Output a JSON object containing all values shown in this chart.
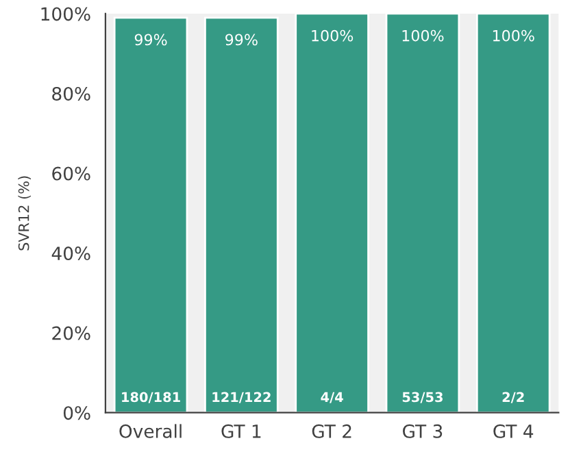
{
  "chart_data": {
    "type": "bar",
    "ylabel": "SVR12 (%)",
    "categories": [
      "Overall",
      "GT 1",
      "GT 2",
      "GT 3",
      "GT 4"
    ],
    "values": [
      99,
      99,
      100,
      100,
      100
    ],
    "color": "#359a85",
    "value_labels": [
      "99%",
      "99%",
      "100%",
      "100%",
      "100%"
    ],
    "annotations": [
      {
        "text": "180/181",
        "x": "Overall",
        "y": 0
      },
      {
        "text": "121/122",
        "x": "GT 1",
        "y": 0
      },
      {
        "text": "4/4",
        "x": "GT 2",
        "y": 0
      },
      {
        "text": "53/53",
        "x": "GT 3",
        "y": 0
      },
      {
        "text": "2/2",
        "x": "GT 4",
        "y": 0
      }
    ],
    "ylim": [
      0,
      100
    ],
    "yticks": [
      {
        "value": 0,
        "label": "0%"
      },
      {
        "value": 20,
        "label": "20%"
      },
      {
        "value": 40,
        "label": "40%"
      },
      {
        "value": 60,
        "label": "60%"
      },
      {
        "value": 80,
        "label": "80%"
      },
      {
        "value": 100,
        "label": "100%"
      }
    ],
    "grid": false,
    "legend": false
  }
}
